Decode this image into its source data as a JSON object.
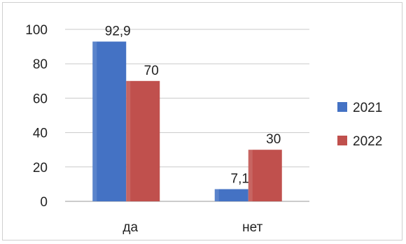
{
  "chart_data": {
    "type": "bar",
    "categories": [
      "да",
      "нет"
    ],
    "series": [
      {
        "name": "2021",
        "values": [
          92.9,
          7.1
        ],
        "labels": [
          "92,9",
          "7,1"
        ],
        "color": "#4472c4"
      },
      {
        "name": "2022",
        "values": [
          70,
          30
        ],
        "labels": [
          "70",
          "30"
        ],
        "color": "#c0504d"
      }
    ],
    "ylim": [
      0,
      100
    ],
    "yticks": [
      "0",
      "20",
      "40",
      "60",
      "80",
      "100"
    ],
    "grid": true,
    "legend": "right"
  }
}
